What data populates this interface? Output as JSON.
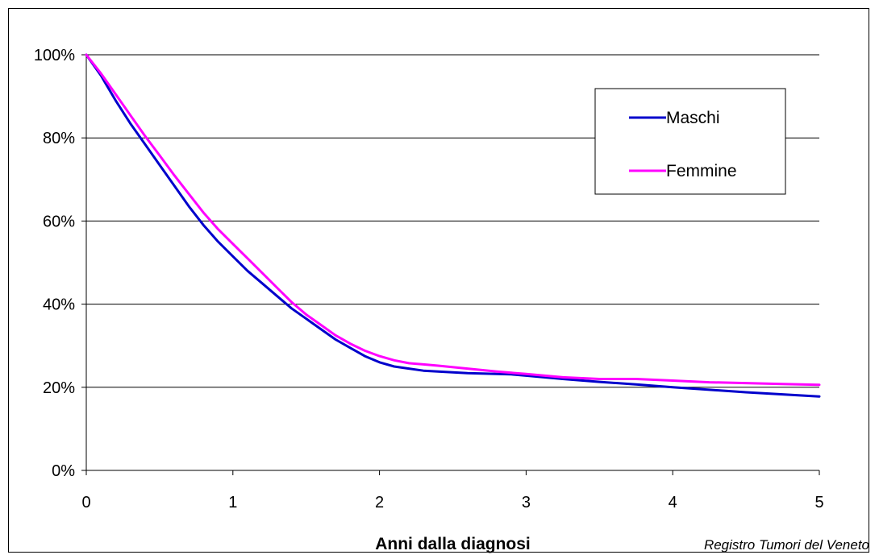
{
  "chart_data": {
    "type": "line",
    "xlabel": "Anni dalla diagnosi",
    "ylabel": "",
    "xlim": [
      0,
      5
    ],
    "ylim": [
      0,
      100
    ],
    "x_ticks": [
      "0",
      "1",
      "2",
      "3",
      "4",
      "5"
    ],
    "y_ticks": [
      "0%",
      "20%",
      "40%",
      "60%",
      "80%",
      "100%"
    ],
    "grid": "horizontal",
    "legend_position": "top-right",
    "series": [
      {
        "name": "Maschi",
        "color": "#0000CC",
        "x": [
          0,
          0.1,
          0.2,
          0.3,
          0.4,
          0.5,
          0.6,
          0.7,
          0.8,
          0.9,
          1.0,
          1.1,
          1.2,
          1.3,
          1.4,
          1.5,
          1.6,
          1.7,
          1.8,
          1.9,
          2.0,
          2.1,
          2.2,
          2.3,
          2.4,
          2.6,
          2.8,
          2.9,
          3.0,
          3.25,
          3.5,
          3.75,
          4.0,
          4.25,
          4.5,
          4.75,
          5.0
        ],
        "y": [
          100,
          95,
          89,
          83.5,
          78.5,
          73.5,
          68.5,
          63.5,
          59,
          55,
          51.5,
          48,
          45,
          42,
          39,
          36.5,
          34,
          31.5,
          29.5,
          27.5,
          26,
          25,
          24.5,
          24,
          23.8,
          23.4,
          23.2,
          23.1,
          22.8,
          22,
          21.3,
          20.7,
          20,
          19.4,
          18.8,
          18.3,
          17.8
        ]
      },
      {
        "name": "Femmine",
        "color": "#FF00FF",
        "x": [
          0,
          0.1,
          0.2,
          0.3,
          0.4,
          0.5,
          0.6,
          0.7,
          0.8,
          0.9,
          1.0,
          1.1,
          1.2,
          1.3,
          1.4,
          1.5,
          1.6,
          1.7,
          1.8,
          1.9,
          2.0,
          2.1,
          2.2,
          2.3,
          2.4,
          2.6,
          2.8,
          3.0,
          3.25,
          3.5,
          3.75,
          4.0,
          4.25,
          4.5,
          4.75,
          5.0
        ],
        "y": [
          100,
          95.5,
          90.5,
          85.5,
          80.5,
          75.8,
          71,
          66.5,
          62,
          58,
          54.5,
          51,
          47.5,
          44,
          40.5,
          37.5,
          35,
          32.5,
          30.5,
          28.8,
          27.5,
          26.5,
          25.8,
          25.5,
          25.2,
          24.5,
          23.8,
          23.2,
          22.4,
          22,
          22,
          21.6,
          21.2,
          21,
          20.8,
          20.6
        ]
      }
    ]
  },
  "source_note": "Registro Tumori del Veneto"
}
